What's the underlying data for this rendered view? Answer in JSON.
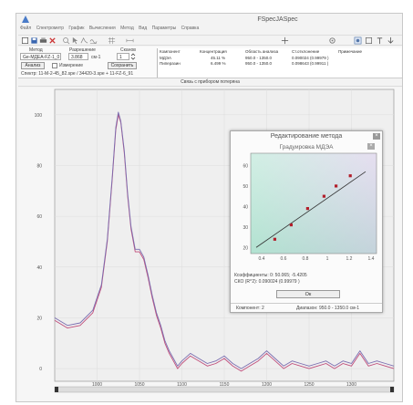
{
  "window": {
    "title": "FSpecJASpec"
  },
  "menu": [
    "Файл",
    "Спектрометр",
    "График",
    "Вычисления",
    "Метод",
    "Вид",
    "Параметры",
    "Справка"
  ],
  "toolbar_icons": [
    "new-icon",
    "save-icon",
    "print-icon",
    "delete-icon",
    "zoom-icon",
    "cursor-icon",
    "peak-icon",
    "baseline-icon",
    "grid-icon",
    "measure-icon",
    "arrows-icon",
    "settings-icon",
    "lock-icon",
    "window-icon",
    "pin-icon"
  ],
  "params": {
    "method_label": "Метод",
    "method_value": "Ge-МДЕА-FZ-1_0",
    "resolution_label": "Разрешение",
    "resolution_value": "3.868",
    "resolution_unit": "см-1",
    "scans_label": "Сканов",
    "scans_value": "1",
    "analyze_button": "Анализ",
    "measure_checkbox": "Измерение",
    "save_button": "Сохранить",
    "spectrum_path": "Спектр: 11-М-2-45_82.spe / 34420-3.spe + 11-FZ-6_91"
  },
  "components": {
    "headers": [
      "Компонент",
      "Концентрация",
      "Область анализа",
      "Ст.отклонение",
      "Примечание"
    ],
    "rows": [
      {
        "name": "МДЭА",
        "conc": "45.11 %",
        "range": "950.0 - 1350.0",
        "dev": "0.090024 (0.99979 )"
      },
      {
        "name": "Пиперазин",
        "conc": "6.499 %",
        "range": "950.0 - 1350.0",
        "dev": "0.098643 (0.99911 )"
      }
    ]
  },
  "section": {
    "title": "Связь с прибором потеряна"
  },
  "spectrum": {
    "y_ticks": [
      "100",
      "80",
      "60",
      "40",
      "20",
      "0"
    ],
    "x_ticks": [
      "1000",
      "1050",
      "1100",
      "1150",
      "1200",
      "1250",
      "1300"
    ],
    "colors": {
      "series_a": "#c04d7a",
      "series_b": "#7a6db0"
    }
  },
  "chart_data": {
    "type": "line",
    "xlim": [
      950,
      1350
    ],
    "ylim": [
      -5,
      110
    ],
    "series": [
      {
        "x": [
          950,
          965,
          980,
          995,
          1005,
          1012,
          1018,
          1022,
          1025,
          1028,
          1032,
          1036,
          1040,
          1045,
          1050,
          1055,
          1060,
          1065,
          1070,
          1075,
          1080,
          1085,
          1090,
          1095,
          1100,
          1110,
          1120,
          1130,
          1140,
          1150,
          1160,
          1170,
          1180,
          1190,
          1200,
          1210,
          1220,
          1230,
          1240,
          1250,
          1260,
          1270,
          1280,
          1290,
          1300,
          1310,
          1320,
          1330,
          1340,
          1350
        ],
        "values": [
          19,
          16,
          17,
          22,
          32,
          50,
          75,
          94,
          100,
          97,
          85,
          68,
          55,
          46,
          46,
          43,
          36,
          28,
          21,
          16,
          10,
          6,
          3,
          0,
          2,
          5,
          3,
          1,
          2,
          4,
          1,
          -1,
          1,
          3,
          6,
          3,
          0,
          2,
          1,
          0,
          1,
          2,
          0,
          2,
          1,
          6,
          1,
          2,
          1,
          0
        ]
      },
      {
        "x": [
          950,
          965,
          980,
          995,
          1005,
          1012,
          1018,
          1022,
          1025,
          1028,
          1032,
          1036,
          1040,
          1045,
          1050,
          1055,
          1060,
          1065,
          1070,
          1075,
          1080,
          1085,
          1090,
          1095,
          1100,
          1110,
          1120,
          1130,
          1140,
          1150,
          1160,
          1170,
          1180,
          1190,
          1200,
          1210,
          1220,
          1230,
          1240,
          1250,
          1260,
          1270,
          1280,
          1290,
          1300,
          1310,
          1320,
          1330,
          1340,
          1350
        ],
        "values": [
          20,
          17,
          18,
          23,
          33,
          51,
          76,
          95,
          101,
          97.5,
          86,
          69,
          56,
          47,
          47,
          44,
          37,
          29,
          22,
          17,
          11,
          7,
          4,
          1,
          3,
          6,
          4,
          2,
          3,
          5,
          2,
          0,
          2,
          4,
          7,
          4,
          1,
          3,
          2,
          1,
          2,
          3,
          1,
          3,
          2,
          7,
          2,
          3,
          2,
          1
        ]
      }
    ]
  },
  "dialog": {
    "title": "Редактирование метода",
    "subtitle": "Градуировка МДЭА",
    "y_ticks": [
      "60",
      "50",
      "40",
      "30",
      "20"
    ],
    "x_ticks": [
      "0.4",
      "0.6",
      "0.8",
      "1",
      "1.2",
      "1.4"
    ],
    "coefficients": "Коэффициенты: 0: 50.065;  -5.4205",
    "sko": "СКО (R^2): 0.090024 (0.99979 )",
    "ok_button": "Ок",
    "status_component": "Компонент: 2",
    "status_range": "Диапазон: 950.0 - 1350.0 см-1",
    "calib_points": {
      "x": [
        0.52,
        0.67,
        0.82,
        0.97,
        1.08,
        1.21
      ],
      "y": [
        24,
        31,
        39,
        45,
        50,
        55
      ]
    },
    "fit_line": {
      "x": [
        0.35,
        1.35
      ],
      "y": [
        20,
        57
      ]
    }
  }
}
